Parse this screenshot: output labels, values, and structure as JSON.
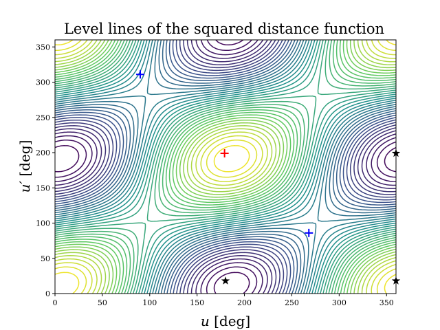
{
  "chart_data": {
    "type": "contour",
    "title": "Level lines of the squared distance function",
    "xlabel_var": "u",
    "xlabel_unit": " [deg]",
    "ylabel_var": "u′",
    "ylabel_unit": " [deg]",
    "xlim": [
      0,
      360
    ],
    "ylim": [
      0,
      360
    ],
    "xticks": [
      0,
      50,
      100,
      150,
      200,
      250,
      300,
      350
    ],
    "yticks": [
      0,
      50,
      100,
      150,
      200,
      250,
      300,
      350
    ],
    "grid": false,
    "legend": "none",
    "colormap": [
      "#440154",
      "#3b528b",
      "#21918c",
      "#5ec962",
      "#fde725"
    ],
    "contour_levels": 40,
    "markers": [
      {
        "kind": "plus",
        "color": "#ff0000",
        "x": 179,
        "y": 199
      },
      {
        "kind": "plus",
        "color": "#0000ff",
        "x": 90,
        "y": 311
      },
      {
        "kind": "plus",
        "color": "#0000ff",
        "x": 268,
        "y": 86
      },
      {
        "kind": "star",
        "color": "#000000",
        "x": 180,
        "y": 18
      },
      {
        "kind": "star",
        "color": "#000000",
        "x": 360,
        "y": 199
      },
      {
        "kind": "star",
        "color": "#000000",
        "x": 360,
        "y": 18
      }
    ]
  }
}
